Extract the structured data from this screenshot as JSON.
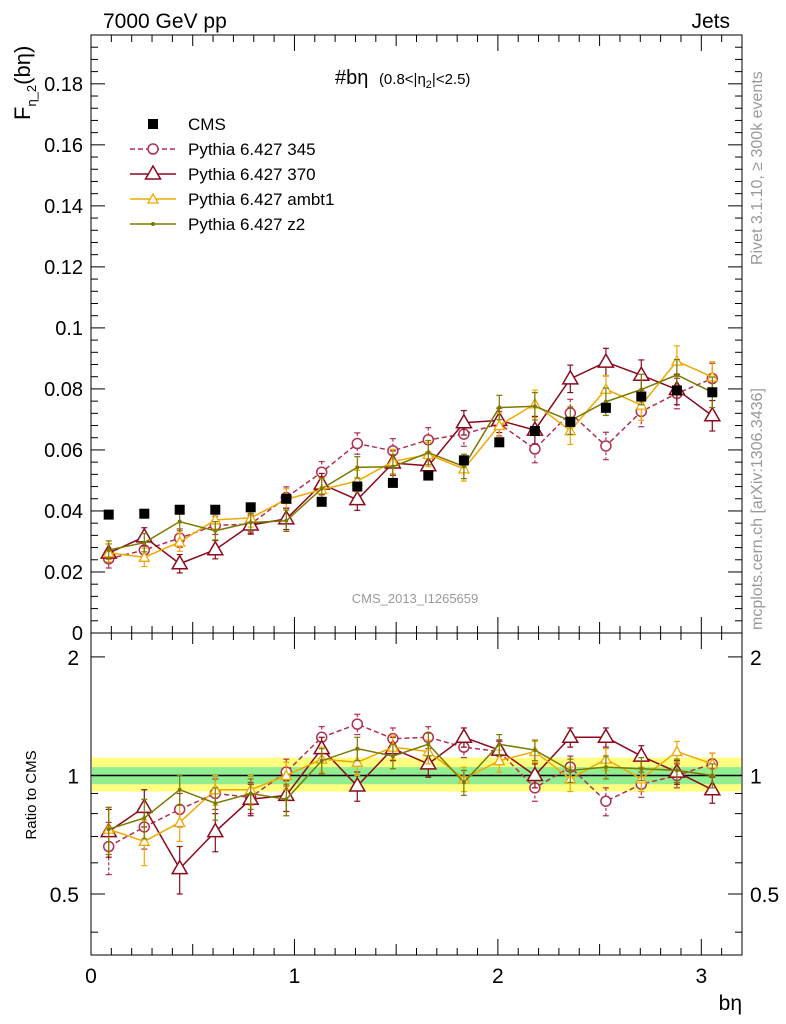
{
  "header": {
    "left": "7000 GeV pp",
    "right": "Jets"
  },
  "side_labels": {
    "top": "Rivet 3.1.10, ≥ 300k events",
    "bottom": "mcplots.cern.ch [arXiv:1306.3436]"
  },
  "watermark": "CMS_2013_I1265659",
  "colors": {
    "cms": "#000000",
    "p345": "#b03050",
    "p370": "#8b0a1e",
    "ambt1": "#f0a800",
    "z2": "#7a7a00",
    "band_inner": "#90ee90",
    "band_outer": "#ffff80"
  },
  "chart_data": [
    {
      "type": "scatter",
      "title": "#bη",
      "subtitle": "(0.8<|η",
      "subtitle_sub": "2",
      "subtitle_tail": "|<2.5)",
      "ylabel_main": "F",
      "ylabel_sub": "η_2",
      "ylabel_tail": "(bη)",
      "xlim": [
        0,
        3.2
      ],
      "ylim": [
        0,
        0.196
      ],
      "yticks": [
        0,
        0.02,
        0.04,
        0.06,
        0.08,
        0.1,
        0.12,
        0.14,
        0.16,
        0.18
      ],
      "yticklabels": [
        "0",
        "0.02",
        "0.04",
        "0.06",
        "0.08",
        "0.1",
        "0.12",
        "0.14",
        "0.16",
        "0.18"
      ],
      "legend_position": "top-left",
      "x": [
        0.087,
        0.262,
        0.436,
        0.611,
        0.785,
        0.96,
        1.134,
        1.309,
        1.484,
        1.658,
        1.833,
        2.007,
        2.182,
        2.356,
        2.531,
        2.705,
        2.88,
        3.054
      ],
      "series": [
        {
          "name": "CMS",
          "key": "cms",
          "style": "square",
          "values": [
            0.0388,
            0.0391,
            0.0404,
            0.0404,
            0.0412,
            0.044,
            0.043,
            0.048,
            0.0492,
            0.0516,
            0.0566,
            0.0625,
            0.0662,
            0.0692,
            0.0738,
            0.0775,
            0.0795,
            0.0789
          ],
          "errors": [
            0.0008,
            0.0008,
            0.0008,
            0.0008,
            0.0008,
            0.0009,
            0.0009,
            0.0009,
            0.001,
            0.001,
            0.0012,
            0.0013,
            0.0013,
            0.0014,
            0.0014,
            0.0015,
            0.0016,
            0.0016
          ]
        },
        {
          "name": "Pythia 6.427 345",
          "key": "p345",
          "style": "circle-dashed",
          "values": [
            0.0243,
            0.0272,
            0.0311,
            0.0353,
            0.0357,
            0.0444,
            0.0527,
            0.0621,
            0.0597,
            0.0633,
            0.0652,
            0.0686,
            0.0603,
            0.0721,
            0.0613,
            0.0726,
            0.0785,
            0.0834
          ],
          "errors": [
            0.003,
            0.003,
            0.003,
            0.003,
            0.003,
            0.0035,
            0.0035,
            0.0035,
            0.004,
            0.004,
            0.004,
            0.004,
            0.0045,
            0.0045,
            0.0045,
            0.005,
            0.005,
            0.005
          ]
        },
        {
          "name": "Pythia 6.427 370",
          "key": "p370",
          "style": "triangle",
          "values": [
            0.0262,
            0.0315,
            0.0227,
            0.0273,
            0.0354,
            0.0374,
            0.0488,
            0.0437,
            0.0557,
            0.0548,
            0.0689,
            0.0697,
            0.0665,
            0.0833,
            0.0888,
            0.0845,
            0.0798,
            0.0712
          ],
          "errors": [
            0.003,
            0.003,
            0.003,
            0.003,
            0.003,
            0.0035,
            0.0035,
            0.0035,
            0.004,
            0.004,
            0.004,
            0.004,
            0.0045,
            0.0045,
            0.0045,
            0.005,
            0.005,
            0.005
          ]
        },
        {
          "name": "Pythia 6.427 ambt1",
          "key": "ambt1",
          "style": "triangle-small",
          "values": [
            0.0263,
            0.0248,
            0.0298,
            0.0371,
            0.0377,
            0.0438,
            0.047,
            0.0498,
            0.0562,
            0.0585,
            0.0538,
            0.068,
            0.0751,
            0.0663,
            0.0799,
            0.0747,
            0.0891,
            0.0839
          ],
          "errors": [
            0.003,
            0.003,
            0.003,
            0.003,
            0.003,
            0.0035,
            0.0035,
            0.0035,
            0.004,
            0.004,
            0.004,
            0.004,
            0.0045,
            0.0045,
            0.0045,
            0.005,
            0.005,
            0.005
          ]
        },
        {
          "name": "Pythia 6.427 z2",
          "key": "z2",
          "style": "dot",
          "values": [
            0.0272,
            0.0296,
            0.0365,
            0.0335,
            0.0362,
            0.0368,
            0.0473,
            0.0543,
            0.0545,
            0.0591,
            0.0546,
            0.0739,
            0.0743,
            0.0696,
            0.0758,
            0.0798,
            0.0846,
            0.0789
          ],
          "errors": [
            0.003,
            0.003,
            0.003,
            0.003,
            0.003,
            0.0035,
            0.0035,
            0.0035,
            0.004,
            0.004,
            0.004,
            0.004,
            0.0045,
            0.0045,
            0.0045,
            0.005,
            0.005,
            0.005
          ]
        }
      ]
    },
    {
      "type": "scatter",
      "xlabel": "bη",
      "ylabel": "Ratio to CMS",
      "xlim": [
        0,
        3.2
      ],
      "ylim": [
        0.35,
        2.3
      ],
      "log_y": true,
      "xticks": [
        0,
        1,
        2,
        3
      ],
      "xticklabels": [
        "0",
        "1",
        "2",
        "3"
      ],
      "yticks": [
        0.5,
        1,
        2
      ],
      "yticklabels": [
        "0.5",
        "1",
        "2"
      ],
      "band_inner": [
        0.95,
        1.05
      ],
      "band_outer": [
        0.91,
        1.11
      ],
      "reference": 1.0,
      "x": [
        0.087,
        0.262,
        0.436,
        0.611,
        0.785,
        0.96,
        1.134,
        1.309,
        1.484,
        1.658,
        1.833,
        2.007,
        2.182,
        2.356,
        2.531,
        2.705,
        2.88,
        3.054
      ],
      "series": [
        {
          "name": "Pythia 6.427 345",
          "key": "p345",
          "style": "circle-dashed",
          "values": [
            0.66,
            0.74,
            0.82,
            0.9,
            0.88,
            1.02,
            1.25,
            1.35,
            1.24,
            1.25,
            1.18,
            1.15,
            0.93,
            1.05,
            0.86,
            0.95,
            1.0,
            1.07
          ],
          "errors": [
            0.1,
            0.09,
            0.08,
            0.08,
            0.08,
            0.08,
            0.08,
            0.08,
            0.08,
            0.08,
            0.07,
            0.07,
            0.07,
            0.07,
            0.07,
            0.07,
            0.07,
            0.07
          ]
        },
        {
          "name": "Pythia 6.427 370",
          "key": "p370",
          "style": "triangle",
          "values": [
            0.72,
            0.83,
            0.58,
            0.72,
            0.87,
            0.89,
            1.17,
            0.94,
            1.17,
            1.07,
            1.25,
            1.16,
            1.0,
            1.25,
            1.25,
            1.12,
            1.02,
            0.92
          ],
          "errors": [
            0.1,
            0.09,
            0.08,
            0.08,
            0.08,
            0.08,
            0.08,
            0.08,
            0.08,
            0.08,
            0.07,
            0.07,
            0.07,
            0.07,
            0.07,
            0.07,
            0.07,
            0.07
          ]
        },
        {
          "name": "Pythia 6.427 ambt1",
          "key": "ambt1",
          "style": "triangle-small",
          "values": [
            0.73,
            0.68,
            0.76,
            0.92,
            0.92,
            1.0,
            1.1,
            1.08,
            1.18,
            1.15,
            0.98,
            1.09,
            1.15,
            0.98,
            1.1,
            0.98,
            1.15,
            1.07
          ],
          "errors": [
            0.1,
            0.09,
            0.08,
            0.08,
            0.08,
            0.08,
            0.08,
            0.08,
            0.08,
            0.08,
            0.07,
            0.07,
            0.07,
            0.07,
            0.07,
            0.07,
            0.07,
            0.07
          ]
        },
        {
          "name": "Pythia 6.427 z2",
          "key": "z2",
          "style": "dot",
          "values": [
            0.73,
            0.78,
            0.92,
            0.85,
            0.9,
            0.87,
            1.09,
            1.17,
            1.12,
            1.2,
            0.96,
            1.2,
            1.16,
            1.03,
            1.05,
            1.04,
            1.03,
            1.0
          ],
          "errors": [
            0.1,
            0.09,
            0.08,
            0.08,
            0.08,
            0.08,
            0.08,
            0.08,
            0.08,
            0.08,
            0.07,
            0.07,
            0.07,
            0.07,
            0.07,
            0.07,
            0.07,
            0.07
          ]
        }
      ]
    }
  ]
}
